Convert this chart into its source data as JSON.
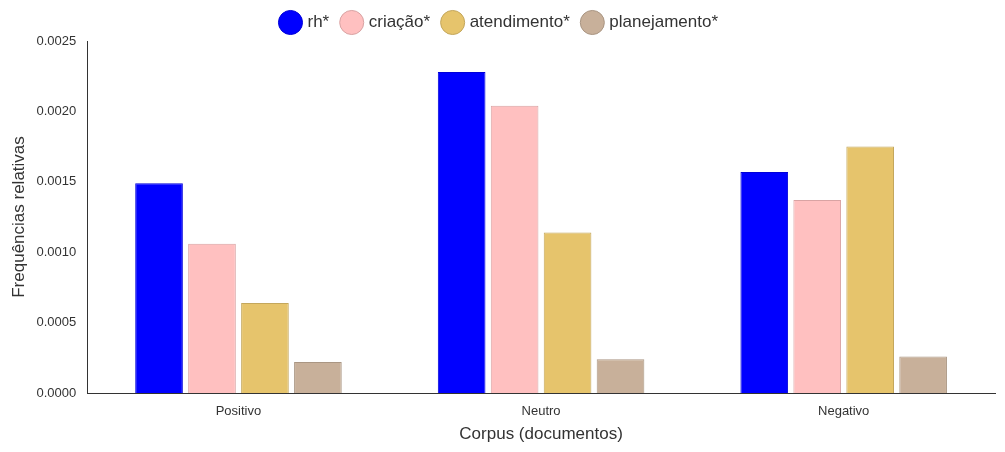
{
  "chart_data": {
    "type": "bar",
    "xlabel": "Corpus (documentos)",
    "ylabel": "Frequências relativas",
    "categories": [
      "Positivo",
      "Neutro",
      "Negativo"
    ],
    "series": [
      {
        "name": "rh*",
        "color": "#0000ff",
        "values": [
          0.00149,
          0.00228,
          0.00157
        ]
      },
      {
        "name": "criação*",
        "color": "#ffc0c0",
        "values": [
          0.00106,
          0.00204,
          0.00137
        ]
      },
      {
        "name": "atendimento*",
        "color": "#e6c46c",
        "values": [
          0.00064,
          0.00114,
          0.00175
        ]
      },
      {
        "name": "planejamento*",
        "color": "#c8b09a",
        "values": [
          0.00022,
          0.00024,
          0.00026
        ]
      }
    ],
    "ylim": [
      0,
      0.0025
    ],
    "yticks": [
      {
        "value": 0,
        "label": "0.0000"
      },
      {
        "value": 0.0005,
        "label": "0.0005"
      },
      {
        "value": 0.001,
        "label": "0.0010"
      },
      {
        "value": 0.0015,
        "label": "0.0015"
      },
      {
        "value": 0.002,
        "label": "0.0020"
      },
      {
        "value": 0.0025,
        "label": "0.0025"
      }
    ],
    "legend": "top",
    "grid": false
  }
}
